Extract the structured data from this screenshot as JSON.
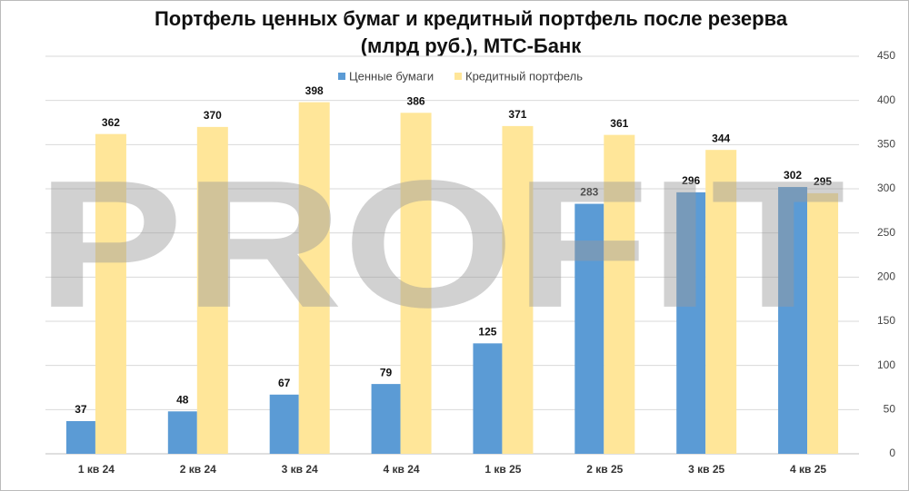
{
  "chart_data": {
    "type": "bar",
    "title": [
      "Портфель ценных бумаг и кредитный портфель после резерва",
      "(млрд руб.), МТС-Банк"
    ],
    "watermark": "PROFIT",
    "categories": [
      "1 кв 24",
      "2 кв 24",
      "3 кв 24",
      "4 кв 24",
      "1 кв 25",
      "2 кв 25",
      "3 кв 25",
      "4 кв 25"
    ],
    "series": [
      {
        "name": "Ценные бумаги",
        "color": "#5b9bd5",
        "values": [
          37,
          48,
          67,
          79,
          125,
          283,
          296,
          302
        ]
      },
      {
        "name": "Кредитный портфель",
        "color": "#ffe699",
        "values": [
          362,
          370,
          398,
          386,
          371,
          361,
          344,
          295
        ]
      }
    ],
    "ylim": [
      0,
      450
    ],
    "yticks": [
      0,
      50,
      100,
      150,
      200,
      250,
      300,
      350,
      400,
      450
    ],
    "y_axis_side": "right",
    "grid": true,
    "legend": "top"
  }
}
